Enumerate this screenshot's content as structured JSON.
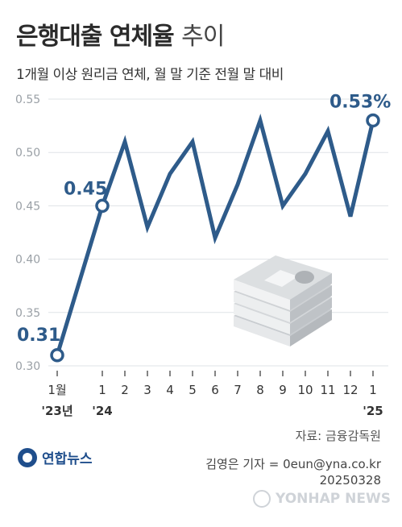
{
  "header": {
    "title_bold": "은행대출 연체율",
    "title_light": "추이",
    "subtitle": "1개월 이상 원리금 연체, 월 말 기준 전월 말 대비"
  },
  "chart_data": {
    "type": "line",
    "title": "은행대출 연체율 추이",
    "subtitle": "1개월 이상 원리금 연체, 월 말 기준 전월 말 대비",
    "unit": "%",
    "x": [
      "2023-01",
      "2024-01",
      "2024-02",
      "2024-03",
      "2024-04",
      "2024-05",
      "2024-06",
      "2024-07",
      "2024-08",
      "2024-09",
      "2024-10",
      "2024-11",
      "2024-12",
      "2025-01"
    ],
    "x_tick_labels": [
      "1월",
      "1",
      "2",
      "3",
      "4",
      "5",
      "6",
      "7",
      "8",
      "9",
      "10",
      "11",
      "12",
      "1"
    ],
    "year_labels": [
      "'23년",
      "'24",
      "",
      "",
      "",
      "",
      "",
      "",
      "",
      "",
      "",
      "",
      "",
      "'25"
    ],
    "series": [
      {
        "values": [
          0.31,
          0.45,
          0.51,
          0.43,
          0.48,
          0.51,
          0.42,
          0.47,
          0.53,
          0.45,
          0.48,
          0.52,
          0.44,
          0.53
        ]
      }
    ],
    "ylim": [
      0.3,
      0.55
    ],
    "yticks": [
      "0.55",
      "0.50",
      "0.45",
      "0.40",
      "0.35",
      "0.30"
    ],
    "callouts": [
      {
        "index": 0,
        "label": "0.31"
      },
      {
        "index": 1,
        "label": "0.45"
      },
      {
        "index": 13,
        "label": "0.53%"
      }
    ],
    "line_color": "#2e5b8a",
    "grid": true
  },
  "footer": {
    "source": "자료: 금융감독원",
    "reporter": "김영은 기자 = 0eun@yna.co.kr",
    "date": "20250328",
    "logo_text": "연합뉴스",
    "watermark_text": "YONHAP NEWS"
  }
}
